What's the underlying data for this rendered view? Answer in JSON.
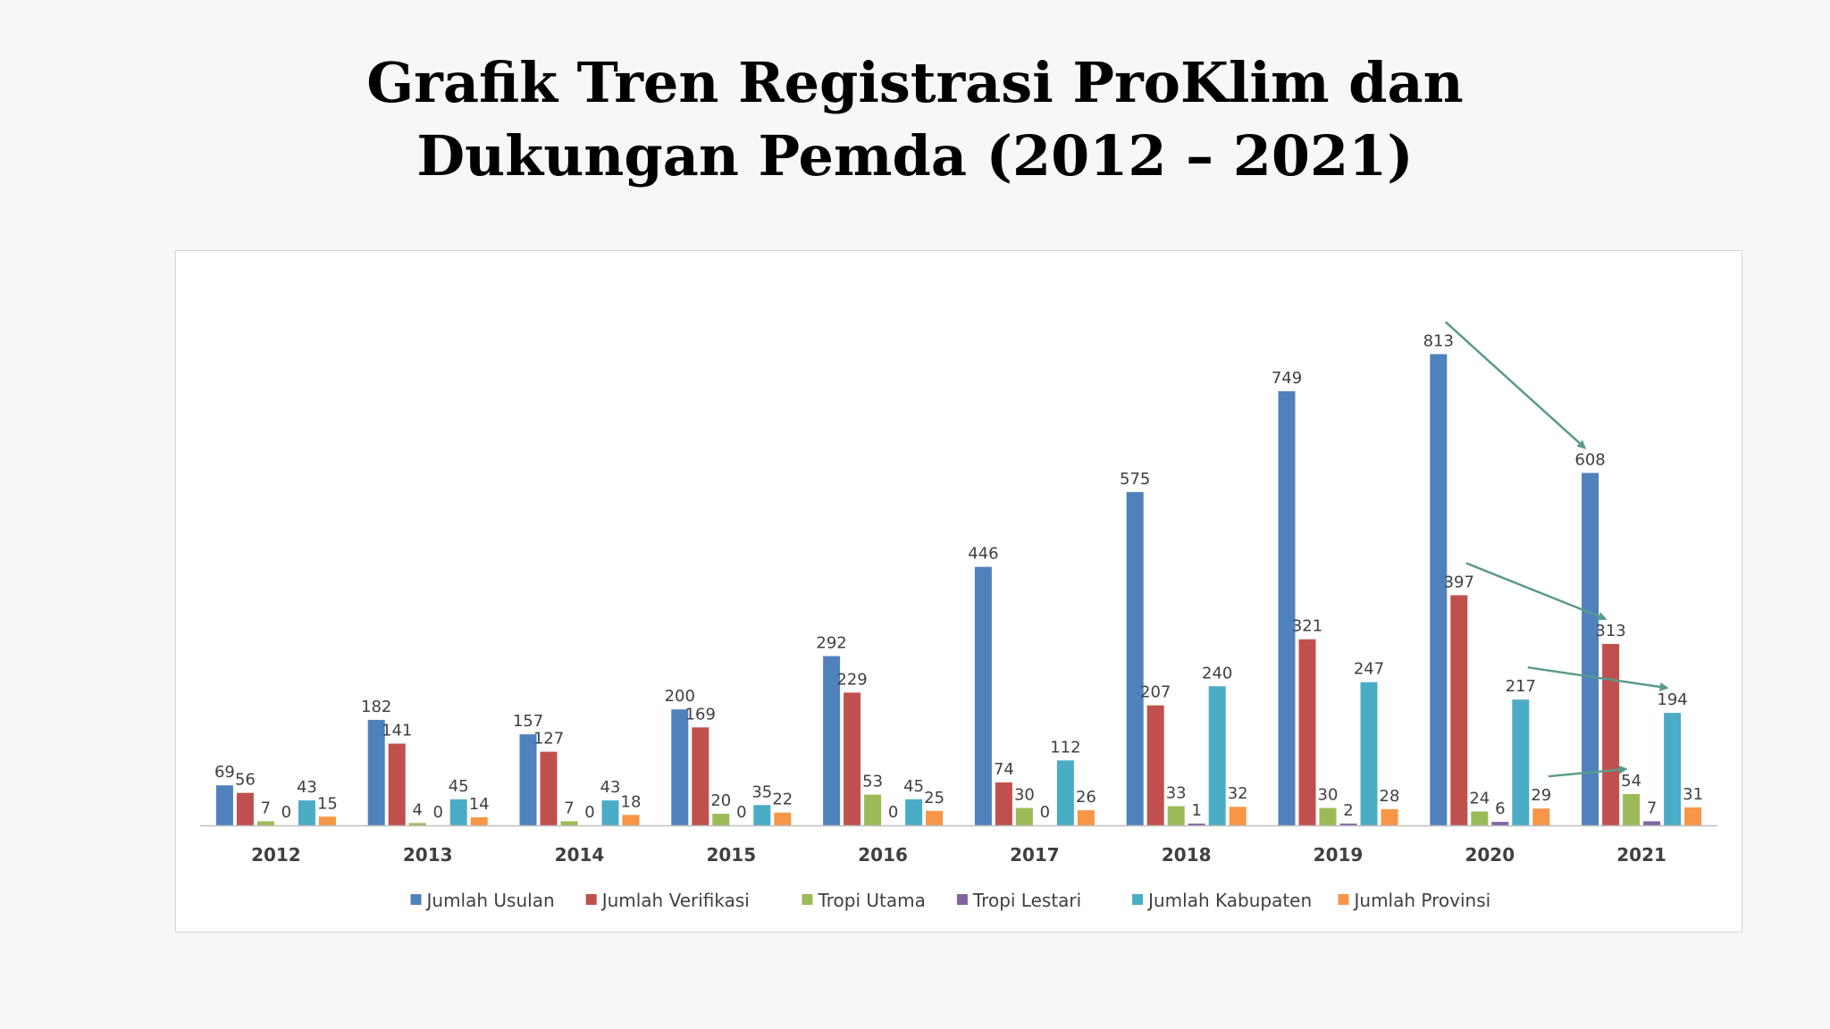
{
  "slide": {
    "title_line1": "Grafik Tren Registrasi ProKlim dan",
    "title_line2": "Dukungan Pemda (2012 – 2021)"
  },
  "chart_data": {
    "type": "bar",
    "categories": [
      "2012",
      "2013",
      "2014",
      "2015",
      "2016",
      "2017",
      "2018",
      "2019",
      "2020",
      "2021"
    ],
    "ylim": [
      0,
      900
    ],
    "grid": false,
    "legend_position": "bottom",
    "series": [
      {
        "name": "Jumlah Usulan",
        "color": "#4f81bd",
        "values": [
          69,
          182,
          157,
          200,
          292,
          446,
          575,
          749,
          813,
          608
        ]
      },
      {
        "name": "Jumlah Verifikasi",
        "color": "#c0504d",
        "values": [
          56,
          141,
          127,
          169,
          229,
          74,
          207,
          321,
          397,
          313
        ]
      },
      {
        "name": "Tropi Utama",
        "color": "#9bbb59",
        "values": [
          7,
          4,
          7,
          20,
          53,
          30,
          33,
          30,
          24,
          54
        ]
      },
      {
        "name": "Tropi Lestari",
        "color": "#8064a2",
        "values": [
          0,
          0,
          0,
          0,
          0,
          0,
          1,
          2,
          6,
          7
        ]
      },
      {
        "name": "Jumlah Kabupaten",
        "color": "#4bacc6",
        "values": [
          43,
          45,
          43,
          35,
          45,
          112,
          240,
          247,
          217,
          194
        ]
      },
      {
        "name": "Jumlah Provinsi",
        "color": "#f79646",
        "values": [
          15,
          14,
          18,
          22,
          25,
          26,
          32,
          28,
          29,
          31
        ]
      }
    ],
    "annotations": {
      "arrow_color": "#5b9a8b",
      "arrows": [
        {
          "from": {
            "series": 0,
            "category": "2020"
          },
          "to": {
            "series": 0,
            "category": "2021"
          }
        },
        {
          "from": {
            "series": 1,
            "category": "2020"
          },
          "to": {
            "series": 1,
            "category": "2021"
          }
        },
        {
          "from": {
            "series": 4,
            "category": "2020"
          },
          "to": {
            "series": 4,
            "category": "2021"
          }
        },
        {
          "from": {
            "series": 5,
            "category": "2020"
          },
          "to": {
            "series": 2,
            "category": "2021"
          }
        }
      ]
    }
  }
}
